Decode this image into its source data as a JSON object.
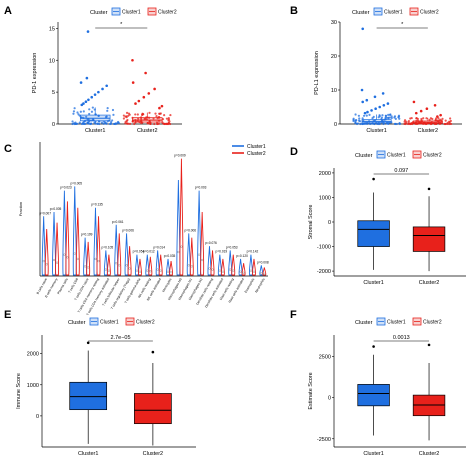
{
  "colors": {
    "cluster1": "#1f6fe0",
    "cluster2": "#e8211b",
    "box_fill_light1": "#cfe0f7",
    "box_fill_light2": "#f7d0cf"
  },
  "chart_data": [
    {
      "panel": "A",
      "type": "box_jitter",
      "ylabel": "PD-1 expression",
      "ylim": [
        0,
        16
      ],
      "yticks": [
        0,
        5,
        10,
        15
      ],
      "categories": [
        "Cluster1",
        "Cluster2"
      ],
      "legend": {
        "title": "Cluster",
        "entries": [
          "Cluster1",
          "Cluster2"
        ],
        "placement": "top"
      },
      "boxes": [
        {
          "q1": 0.5,
          "median": 0.9,
          "q3": 1.4,
          "whisker_low": 0,
          "whisker_high": 2.6
        },
        {
          "q1": 0.3,
          "median": 0.6,
          "q3": 1.0,
          "whisker_low": 0,
          "whisker_high": 1.8
        }
      ],
      "outliers": [
        [
          14.5,
          7.2,
          6.5,
          6.0,
          5.5,
          5.0,
          4.6,
          4.2,
          3.8,
          3.5,
          3.2,
          3.0
        ],
        [
          10.0,
          8.0,
          6.5,
          5.5,
          4.8,
          4.2,
          3.6,
          3.2,
          2.8,
          2.5
        ]
      ],
      "signif": "*"
    },
    {
      "panel": "B",
      "type": "box_jitter",
      "ylabel": "PD-L1 expression",
      "ylim": [
        0,
        30
      ],
      "yticks": [
        0,
        10,
        20,
        30
      ],
      "categories": [
        "Cluster1",
        "Cluster2"
      ],
      "legend": {
        "title": "Cluster",
        "entries": [
          "Cluster1",
          "Cluster2"
        ],
        "placement": "top"
      },
      "boxes": [
        {
          "q1": 0.3,
          "median": 0.7,
          "q3": 1.3,
          "whisker_low": 0,
          "whisker_high": 2.8
        },
        {
          "q1": 0.2,
          "median": 0.5,
          "q3": 0.9,
          "whisker_low": 0,
          "whisker_high": 1.8
        }
      ],
      "outliers": [
        [
          28,
          10,
          9,
          8,
          7,
          6.5,
          6,
          5.5,
          5,
          4.5,
          4,
          3.5,
          3.2
        ],
        [
          6.5,
          5.5,
          4.5,
          3.8,
          3.2,
          2.6,
          2.2
        ]
      ],
      "signif": "*"
    },
    {
      "panel": "C",
      "type": "violin",
      "ylabel": "Fraction",
      "ylim": [
        0,
        0.6
      ],
      "legend": {
        "title": "",
        "entries": [
          "Cluster1",
          "Cluster2"
        ],
        "placement": "top-right"
      },
      "categories": [
        "B cells naive",
        "B cells memory",
        "Plasma cells",
        "T cells CD8",
        "T cells CD4 naive",
        "T cells CD4 memory resting",
        "T cells CD4 memory activated",
        "T cells follicular helper",
        "T cells regulatory (Tregs)",
        "T cells gamma delta",
        "NK cells resting",
        "NK cells activated",
        "Monocytes",
        "Macrophages M0",
        "Macrophages M1",
        "Macrophages M2",
        "Dendritic cells resting",
        "Dendritic cells activated",
        "Mast cells resting",
        "Mast cells activated",
        "Eosinophils",
        "Neutrophils"
      ],
      "pvalues": [
        "p=0.007",
        "p=0.005",
        "p=0.023",
        "p=0.005",
        "p=0.199",
        "p=0.135",
        "p=0.105",
        "p=0.061",
        "p=0.006",
        "p=0.054",
        "p=0.012",
        "p=0.014",
        "p=0.035",
        "p=0.009",
        "p=0.006",
        "p=0.003",
        "p=0.076",
        "p=0.019",
        "p=0.053",
        "p=0.120",
        "p=0.142",
        "p=0.008"
      ],
      "cluster1_max": [
        0.28,
        0.3,
        0.4,
        0.42,
        0.18,
        0.32,
        0.12,
        0.24,
        0.2,
        0.1,
        0.1,
        0.12,
        0.08,
        0.45,
        0.2,
        0.4,
        0.14,
        0.1,
        0.12,
        0.08,
        0.1,
        0.05
      ],
      "cluster2_max": [
        0.22,
        0.25,
        0.35,
        0.32,
        0.16,
        0.28,
        0.1,
        0.2,
        0.14,
        0.08,
        0.09,
        0.1,
        0.07,
        0.55,
        0.18,
        0.3,
        0.12,
        0.08,
        0.1,
        0.06,
        0.08,
        0.04
      ]
    },
    {
      "panel": "D",
      "type": "box",
      "ylabel": "Stromal Score",
      "ylim": [
        -2200,
        2200
      ],
      "yticks": [
        -2000,
        -1000,
        0,
        1000,
        2000
      ],
      "categories": [
        "Cluster1",
        "Cluster2"
      ],
      "legend": {
        "title": "Cluster",
        "entries": [
          "Cluster1",
          "Cluster2"
        ],
        "placement": "top"
      },
      "boxes": [
        {
          "q1": -1000,
          "median": -300,
          "q3": 50,
          "whisker_low": -1950,
          "whisker_high": 1200
        },
        {
          "q1": -1200,
          "median": -550,
          "q3": -200,
          "whisker_low": -2000,
          "whisker_high": 1050
        }
      ],
      "outliers": [
        [
          1750
        ],
        [
          1350
        ]
      ],
      "pvalue": "0.097"
    },
    {
      "panel": "E",
      "type": "box",
      "ylabel": "Immune Score",
      "ylim": [
        -1000,
        2600
      ],
      "yticks": [
        0,
        1000,
        2000
      ],
      "categories": [
        "Cluster1",
        "Cluster2"
      ],
      "legend": {
        "title": "Cluster",
        "entries": [
          "Cluster1",
          "Cluster2"
        ],
        "placement": "top"
      },
      "boxes": [
        {
          "q1": 200,
          "median": 620,
          "q3": 1080,
          "whisker_low": -900,
          "whisker_high": 2100
        },
        {
          "q1": -250,
          "median": 180,
          "q3": 720,
          "whisker_low": -950,
          "whisker_high": 1700
        }
      ],
      "outliers": [
        [
          2350
        ],
        [
          2050
        ]
      ],
      "pvalue": "2.7e−05"
    },
    {
      "panel": "F",
      "type": "box",
      "ylabel": "Estimate Score",
      "ylim": [
        -3000,
        3800
      ],
      "yticks": [
        -2500,
        0,
        2500
      ],
      "categories": [
        "Cluster1",
        "Cluster2"
      ],
      "legend": {
        "title": "Cluster",
        "entries": [
          "Cluster1",
          "Cluster2"
        ],
        "placement": "top"
      },
      "boxes": [
        {
          "q1": -500,
          "median": 250,
          "q3": 800,
          "whisker_low": -2300,
          "whisker_high": 2600
        },
        {
          "q1": -1100,
          "median": -450,
          "q3": 150,
          "whisker_low": -2600,
          "whisker_high": 2100
        }
      ],
      "outliers": [
        [
          3100
        ],
        [
          3200
        ]
      ],
      "pvalue": "0.0013"
    }
  ]
}
